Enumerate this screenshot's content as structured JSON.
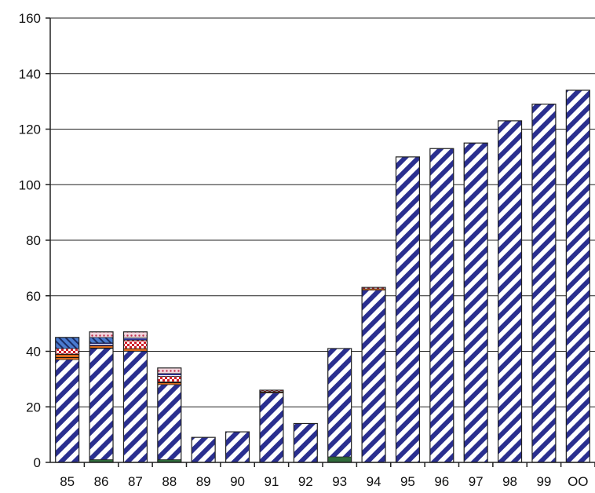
{
  "chart_data": {
    "type": "bar",
    "stacked": true,
    "title": "",
    "xlabel": "",
    "ylabel": "",
    "ylim": [
      0,
      160
    ],
    "yticks": [
      0,
      20,
      40,
      60,
      80,
      100,
      120,
      140,
      160
    ],
    "grid": true,
    "legend": "none",
    "categories": [
      "85",
      "86",
      "87",
      "88",
      "89",
      "90",
      "91",
      "92",
      "93",
      "94",
      "95",
      "96",
      "97",
      "98",
      "99",
      "OO"
    ],
    "series": [
      {
        "pattern": "dark-green",
        "values": [
          0,
          1,
          0,
          1,
          0,
          0,
          0,
          0,
          2,
          0,
          0,
          0,
          0,
          0,
          0,
          0
        ]
      },
      {
        "pattern": "navy-diagonal-hatch",
        "values": [
          37,
          40,
          40,
          27,
          9,
          11,
          25,
          14,
          39,
          62,
          110,
          113,
          115,
          123,
          129,
          134
        ]
      },
      {
        "pattern": "orange-black",
        "values": [
          2,
          1,
          1,
          1,
          0,
          0,
          0.5,
          0,
          0,
          0.5,
          0,
          0,
          0,
          0,
          0,
          0
        ]
      },
      {
        "pattern": "red-checker",
        "values": [
          2,
          0,
          3,
          2,
          0,
          0,
          0.5,
          0,
          0,
          0.5,
          0,
          0,
          0,
          0,
          0,
          0
        ]
      },
      {
        "pattern": "navy-stripe",
        "values": [
          0,
          1,
          1,
          1,
          0,
          0,
          0,
          0,
          0,
          0,
          0,
          0,
          0,
          0,
          0,
          0
        ]
      },
      {
        "pattern": "blue-crosshatch",
        "values": [
          4,
          2,
          0,
          0,
          0,
          0,
          0,
          0,
          0,
          0,
          0,
          0,
          0,
          0,
          0,
          0
        ]
      },
      {
        "pattern": "pink-dots",
        "values": [
          0,
          2,
          2,
          2,
          0,
          0,
          0,
          0,
          0,
          0,
          0,
          0,
          0,
          0,
          0,
          0
        ]
      }
    ],
    "colors": {
      "navy": "#2a2f8f",
      "orange": "#d86a1c",
      "red": "#d0202a",
      "blue": "#4a7bd0",
      "green": "#2f6b3a",
      "pink": "#e05a8a",
      "background": "#ffffff",
      "grid": "#222222"
    }
  }
}
